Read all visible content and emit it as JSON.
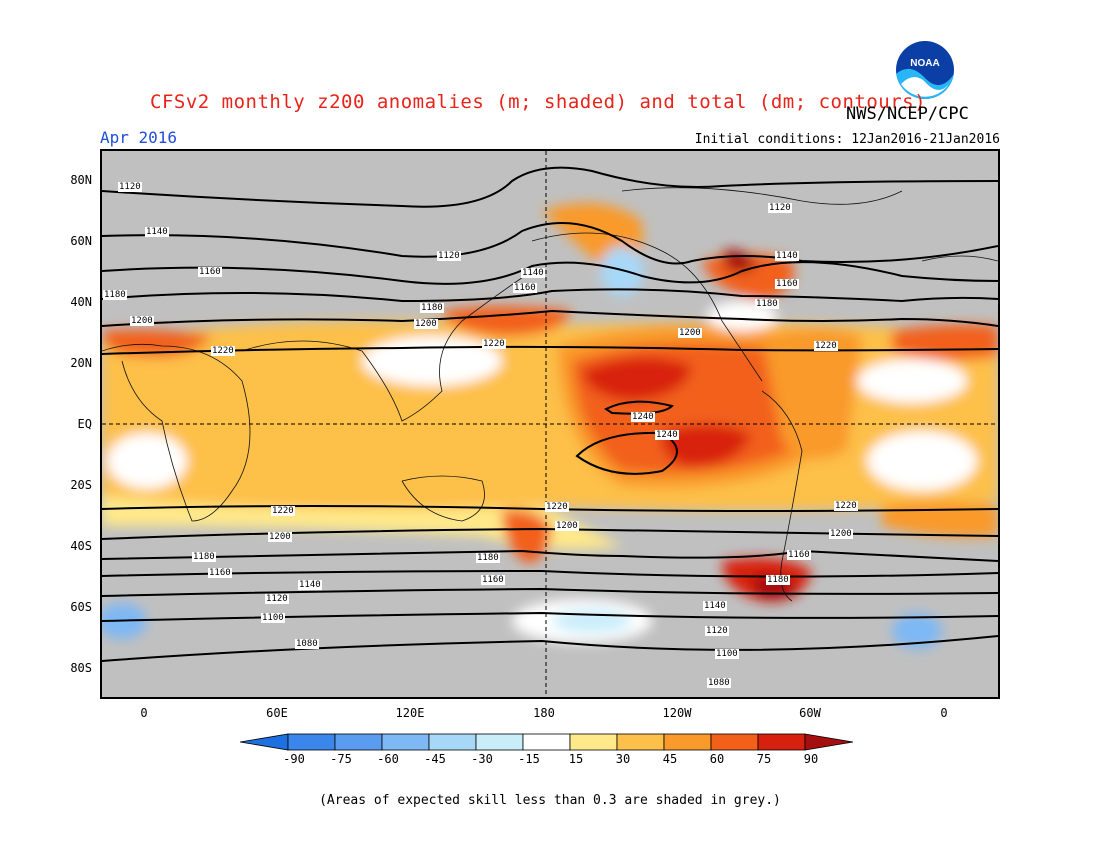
{
  "header": {
    "title": "CFSv2 monthly z200 anomalies (m; shaded) and total (dm; contours)",
    "month": "Apr 2016",
    "agency": "NWS/NCEP/CPC",
    "initial_conditions": "Initial conditions: 12Jan2016-21Jan2016",
    "logo_text": "NOAA"
  },
  "axes": {
    "lat_labels": [
      "80N",
      "60N",
      "40N",
      "20N",
      "EQ",
      "20S",
      "40S",
      "60S",
      "80S"
    ],
    "lon_labels": [
      "0",
      "60E",
      "120E",
      "180",
      "120W",
      "60W",
      "0"
    ]
  },
  "contours": {
    "labels": [
      {
        "t": "1120"
      },
      {
        "t": "1140"
      },
      {
        "t": "1160"
      },
      {
        "t": "1180"
      },
      {
        "t": "1200"
      },
      {
        "t": "1220"
      },
      {
        "t": "1120"
      },
      {
        "t": "1140"
      },
      {
        "t": "1160"
      },
      {
        "t": "1180"
      },
      {
        "t": "1200"
      },
      {
        "t": "1220"
      },
      {
        "t": "1120"
      },
      {
        "t": "1140"
      },
      {
        "t": "1160"
      },
      {
        "t": "1180"
      },
      {
        "t": "1200"
      },
      {
        "t": "1220"
      },
      {
        "t": "1240"
      },
      {
        "t": "1240"
      },
      {
        "t": "1220"
      },
      {
        "t": "1200"
      },
      {
        "t": "1180"
      },
      {
        "t": "1160"
      },
      {
        "t": "1140"
      },
      {
        "t": "1120"
      },
      {
        "t": "1100"
      },
      {
        "t": "1080"
      },
      {
        "t": "1220"
      },
      {
        "t": "1200"
      },
      {
        "t": "1180"
      },
      {
        "t": "1160"
      },
      {
        "t": "1160"
      },
      {
        "t": "1180"
      },
      {
        "t": "1140"
      },
      {
        "t": "1120"
      },
      {
        "t": "1100"
      },
      {
        "t": "1080"
      },
      {
        "t": "1220"
      },
      {
        "t": "1200"
      }
    ]
  },
  "colorbar": {
    "ticks": [
      "-90",
      "-75",
      "-60",
      "-45",
      "-30",
      "-15",
      "15",
      "30",
      "45",
      "60",
      "75",
      "90"
    ],
    "colors": [
      "#1e6fe0",
      "#3a86ea",
      "#5a9cf0",
      "#7eb8f5",
      "#a8d8f8",
      "#c9eefa",
      "#ffffff",
      "#ffe98a",
      "#fdc04a",
      "#f99a2a",
      "#f2601a",
      "#d8200e",
      "#a50f0f"
    ]
  },
  "footnote": "(Areas of expected skill less than 0.3 are shaded in grey.)"
}
